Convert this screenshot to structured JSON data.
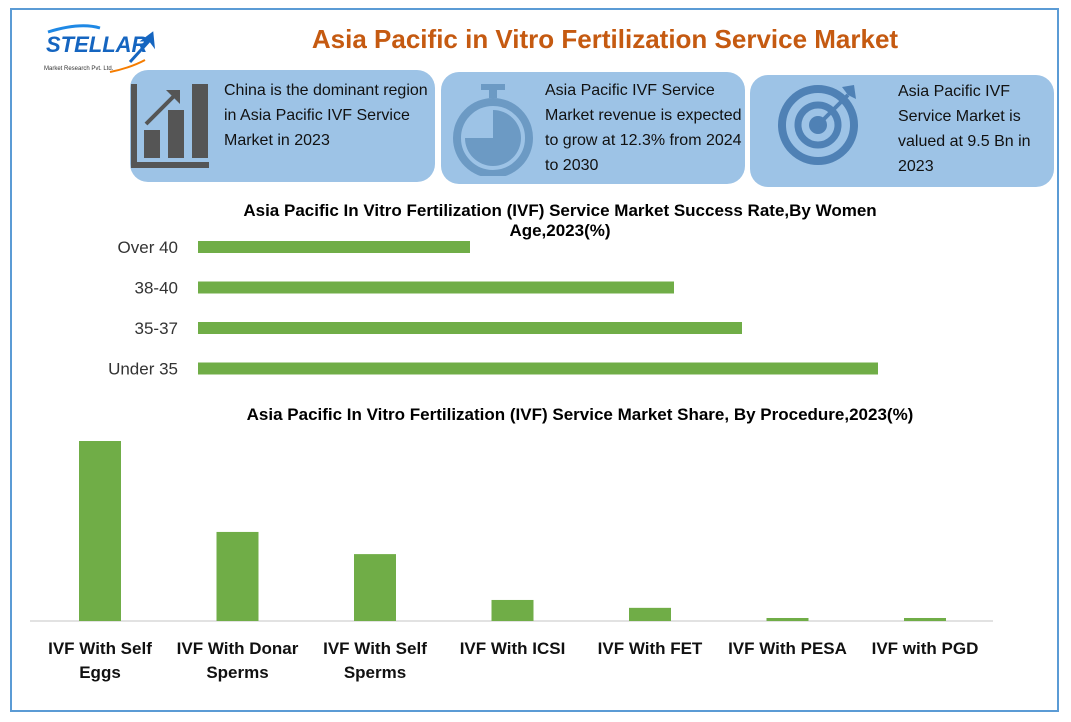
{
  "logo": {
    "brand": "STELLAR",
    "tagline": "Market Research Pvt. Ltd."
  },
  "header": {
    "title": "Asia Pacific in Vitro Fertilization Service Market"
  },
  "cards": [
    {
      "icon": "bar-chart-growth-icon",
      "text": "China is the dominant region in Asia Pacific IVF Service Market in 2023"
    },
    {
      "icon": "stopwatch-icon",
      "text": "Asia Pacific IVF Service Market revenue is expected to grow at 12.3% from 2024 to 2030"
    },
    {
      "icon": "target-icon",
      "text": "Asia Pacific IVF Service Market is valued at 9.5 Bn in 2023"
    }
  ],
  "colors": {
    "bar": "#70ad47",
    "card": "#9dc3e6",
    "title": "#c55a11",
    "frame": "#5b9bd5"
  },
  "chart_data": [
    {
      "type": "bar",
      "orientation": "horizontal",
      "title": "Asia Pacific In Vitro Fertilization (IVF) Service Market Success Rate,By Women Age,2023(%)",
      "categories": [
        "Over 40",
        "38-40",
        "35-37",
        "Under 35"
      ],
      "values": [
        20,
        35,
        40,
        50
      ],
      "grid": false
    },
    {
      "type": "bar",
      "orientation": "vertical",
      "title": "Asia Pacific In Vitro Fertilization (IVF) Service Market Share, By Procedure,2023(%)",
      "categories": [
        "IVF With Self Eggs",
        "IVF With Donar Sperms",
        "IVF With Self Sperms",
        "IVF With ICSI",
        "IVF With FET",
        "IVF With PESA",
        "IVF with PGD"
      ],
      "values": [
        47.9,
        23.7,
        17.8,
        5.6,
        3.5,
        0.8,
        0.8
      ],
      "grid": false
    }
  ]
}
